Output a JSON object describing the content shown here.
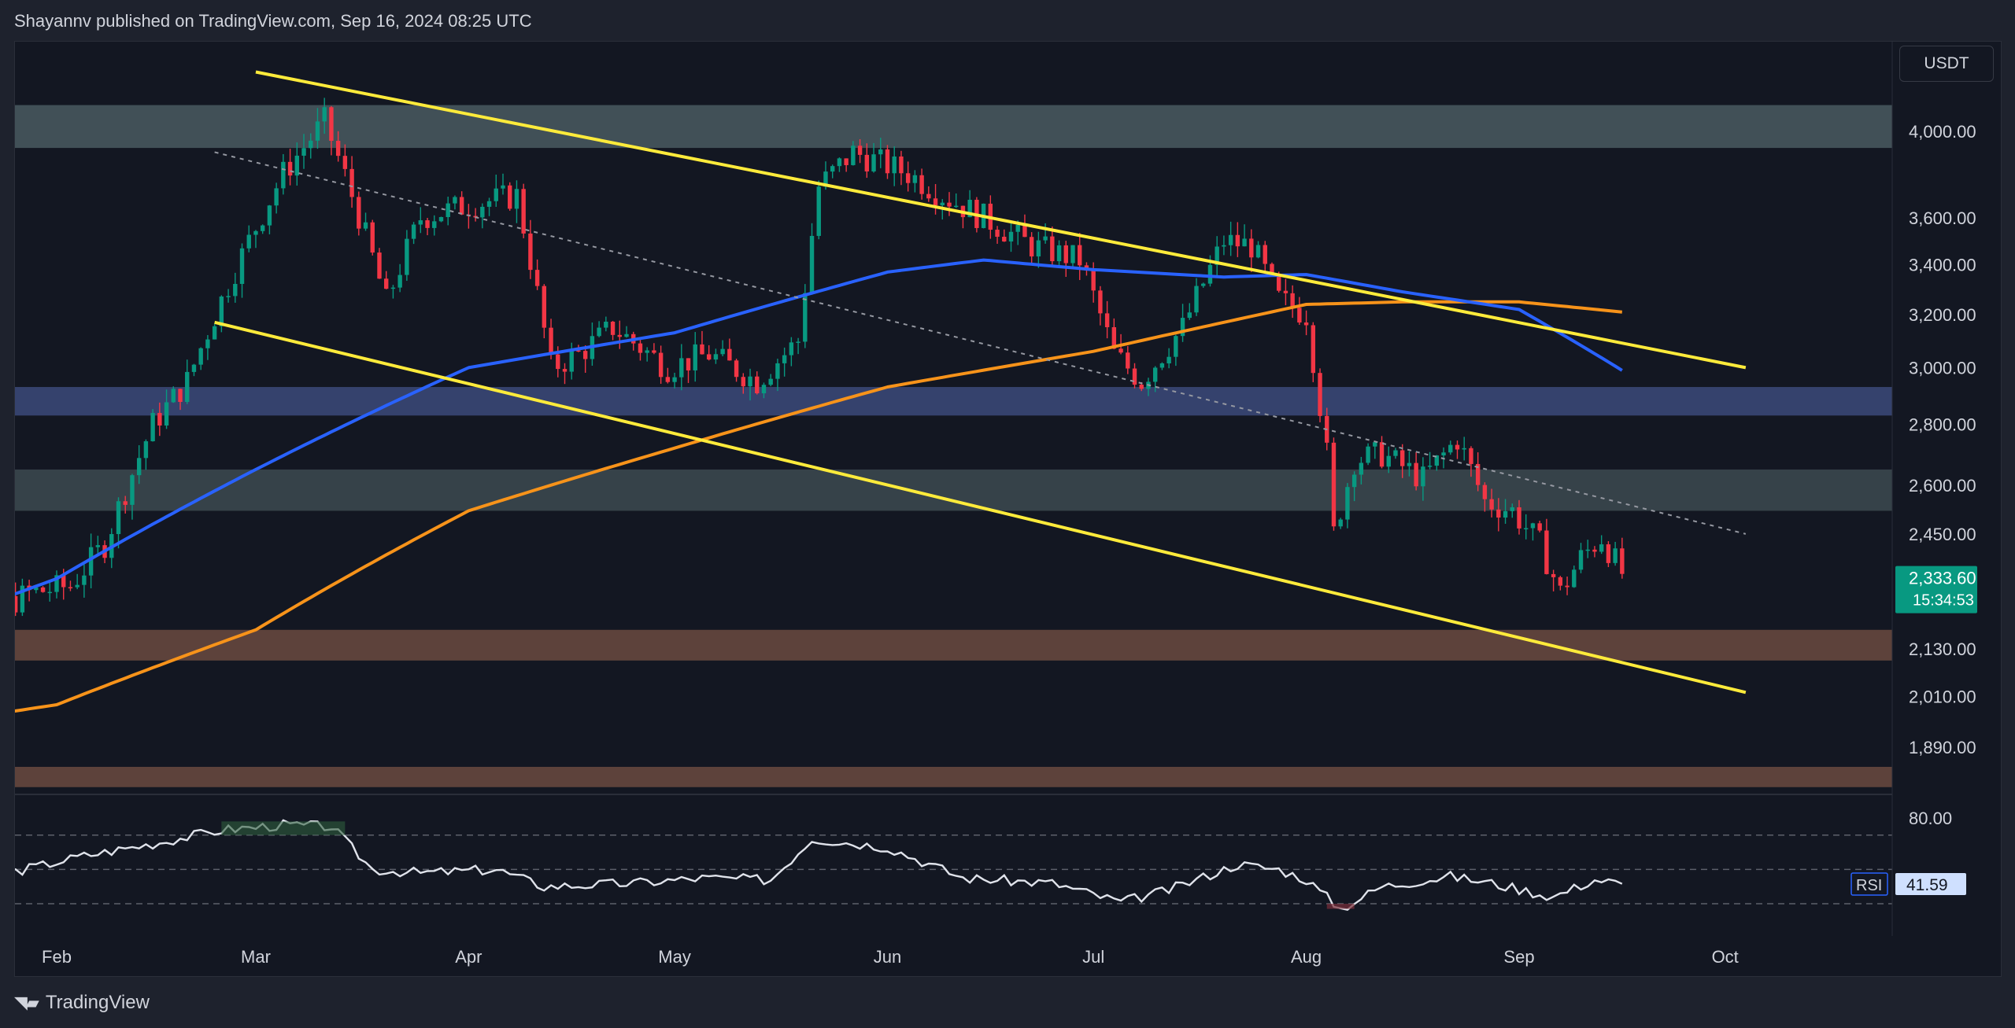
{
  "header": {
    "text": "Shayannv published on TradingView.com, Sep 16, 2024 08:25 UTC"
  },
  "currency": "USDT",
  "footer": {
    "brand": "TradingView",
    "logo": "tradingview-logo-icon"
  },
  "chart_data": [
    {
      "type": "candlestick",
      "title": "",
      "ylabel": "",
      "y_scale": "log",
      "grid": false,
      "y_ticks": [
        4000,
        3600,
        3400,
        3200,
        3000,
        2800,
        2600,
        2450,
        2130,
        2010,
        1890
      ],
      "y_tick_labels": [
        "4,000.00",
        "3,600.00",
        "3,400.00",
        "3,200.00",
        "3,000.00",
        "2,800.00",
        "2,600.00",
        "2,450.00",
        "2,130.00",
        "2,010.00",
        "1,890.00"
      ],
      "x_ticks": [
        "Feb",
        "Mar",
        "Apr",
        "May",
        "Jun",
        "Jul",
        "Aug",
        "Sep",
        "Oct"
      ],
      "x_tick_dates": [
        "2024-02-01",
        "2024-03-01",
        "2024-04-01",
        "2024-05-01",
        "2024-06-01",
        "2024-07-01",
        "2024-08-01",
        "2024-09-01",
        "2024-10-01"
      ],
      "last_price": {
        "label": "2,333.60",
        "countdown": "15:34:53",
        "color": "#089981"
      },
      "colors": {
        "up": "#089981",
        "down": "#f23645"
      },
      "close_anchors": [
        [
          "2024-01-12",
          2600
        ],
        [
          "2024-01-18",
          2470
        ],
        [
          "2024-01-23",
          2230
        ],
        [
          "2024-01-28",
          2280
        ],
        [
          "2024-02-03",
          2300
        ],
        [
          "2024-02-08",
          2420
        ],
        [
          "2024-02-15",
          2800
        ],
        [
          "2024-02-20",
          2950
        ],
        [
          "2024-02-27",
          3380
        ],
        [
          "2024-03-05",
          3800
        ],
        [
          "2024-03-11",
          4050
        ],
        [
          "2024-03-15",
          3700
        ],
        [
          "2024-03-20",
          3250
        ],
        [
          "2024-03-25",
          3600
        ],
        [
          "2024-03-31",
          3650
        ],
        [
          "2024-04-08",
          3700
        ],
        [
          "2024-04-13",
          3000
        ],
        [
          "2024-04-17",
          3050
        ],
        [
          "2024-04-22",
          3150
        ],
        [
          "2024-04-30",
          3000
        ],
        [
          "2024-05-06",
          3050
        ],
        [
          "2024-05-13",
          2950
        ],
        [
          "2024-05-19",
          3100
        ],
        [
          "2024-05-22",
          3740
        ],
        [
          "2024-05-27",
          3900
        ],
        [
          "2024-06-04",
          3800
        ],
        [
          "2024-06-09",
          3700
        ],
        [
          "2024-06-15",
          3600
        ],
        [
          "2024-06-22",
          3480
        ],
        [
          "2024-06-29",
          3420
        ],
        [
          "2024-07-04",
          3050
        ],
        [
          "2024-07-08",
          2950
        ],
        [
          "2024-07-14",
          3150
        ],
        [
          "2024-07-20",
          3500
        ],
        [
          "2024-07-24",
          3480
        ],
        [
          "2024-07-28",
          3260
        ],
        [
          "2024-08-01",
          3200
        ],
        [
          "2024-08-04",
          2700
        ],
        [
          "2024-08-05",
          2450
        ],
        [
          "2024-08-08",
          2680
        ],
        [
          "2024-08-12",
          2700
        ],
        [
          "2024-08-18",
          2620
        ],
        [
          "2024-08-23",
          2750
        ],
        [
          "2024-08-27",
          2550
        ],
        [
          "2024-08-31",
          2520
        ],
        [
          "2024-09-04",
          2420
        ],
        [
          "2024-09-07",
          2280
        ],
        [
          "2024-09-10",
          2380
        ],
        [
          "2024-09-13",
          2440
        ],
        [
          "2024-09-16",
          2333.6
        ]
      ],
      "ma_200": [
        [
          "2024-01-12",
          1940
        ],
        [
          "2024-02-01",
          1990
        ],
        [
          "2024-03-01",
          2180
        ],
        [
          "2024-04-01",
          2520
        ],
        [
          "2024-05-01",
          2720
        ],
        [
          "2024-06-01",
          2930
        ],
        [
          "2024-07-01",
          3060
        ],
        [
          "2024-07-20",
          3170
        ],
        [
          "2024-08-01",
          3240
        ],
        [
          "2024-08-15",
          3250
        ],
        [
          "2024-09-01",
          3250
        ],
        [
          "2024-09-16",
          3210
        ]
      ],
      "ma_100": [
        [
          "2024-01-12",
          2180
        ],
        [
          "2024-02-01",
          2320
        ],
        [
          "2024-03-01",
          2650
        ],
        [
          "2024-04-01",
          3000
        ],
        [
          "2024-05-01",
          3130
        ],
        [
          "2024-06-01",
          3370
        ],
        [
          "2024-06-15",
          3420
        ],
        [
          "2024-07-01",
          3380
        ],
        [
          "2024-07-20",
          3350
        ],
        [
          "2024-08-01",
          3360
        ],
        [
          "2024-08-15",
          3290
        ],
        [
          "2024-09-01",
          3220
        ],
        [
          "2024-09-16",
          2990
        ]
      ],
      "trendlines": [
        {
          "kind": "upper-channel",
          "from": [
            "2024-03-01",
            4300
          ],
          "to": [
            "2024-10-04",
            3000
          ]
        },
        {
          "kind": "lower-channel",
          "from": [
            "2024-02-24",
            3170
          ],
          "to": [
            "2024-10-04",
            2020
          ]
        },
        {
          "kind": "mid-dashed",
          "from": [
            "2024-02-24",
            3900
          ],
          "to": [
            "2024-10-04",
            2450
          ]
        }
      ],
      "zones": [
        {
          "kind": "resistance",
          "low": 3920,
          "high": 4130,
          "color": "#4a5a60"
        },
        {
          "kind": "support",
          "low": 2830,
          "high": 2930,
          "color": "#3c4a7a"
        },
        {
          "kind": "support",
          "low": 2520,
          "high": 2650,
          "color": "#3d4a50"
        },
        {
          "kind": "demand",
          "low": 2100,
          "high": 2180,
          "color": "#6b4a3f"
        },
        {
          "kind": "demand",
          "low": 1800,
          "high": 1845,
          "color": "#6b4a3f"
        }
      ]
    },
    {
      "type": "line",
      "title": "",
      "series": [
        {
          "name": "RSI",
          "last": 41.59
        }
      ],
      "last_label": "41.59",
      "y_ticks": [
        80.0
      ],
      "y_tick_labels": [
        "80.00"
      ],
      "levels": [
        70,
        50,
        30
      ],
      "rsi_anchors": [
        [
          "2024-01-12",
          47
        ],
        [
          "2024-01-25",
          48
        ],
        [
          "2024-02-05",
          58
        ],
        [
          "2024-02-15",
          65
        ],
        [
          "2024-02-25",
          73
        ],
        [
          "2024-03-05",
          76
        ],
        [
          "2024-03-12",
          75
        ],
        [
          "2024-03-18",
          50
        ],
        [
          "2024-03-25",
          48
        ],
        [
          "2024-04-05",
          50
        ],
        [
          "2024-04-12",
          40
        ],
        [
          "2024-04-25",
          42
        ],
        [
          "2024-05-05",
          45
        ],
        [
          "2024-05-15",
          44
        ],
        [
          "2024-05-21",
          68
        ],
        [
          "2024-06-01",
          63
        ],
        [
          "2024-06-12",
          45
        ],
        [
          "2024-06-25",
          42
        ],
        [
          "2024-07-05",
          31
        ],
        [
          "2024-07-12",
          38
        ],
        [
          "2024-07-22",
          53
        ],
        [
          "2024-07-28",
          50
        ],
        [
          "2024-08-01",
          44
        ],
        [
          "2024-08-06",
          27
        ],
        [
          "2024-08-12",
          40
        ],
        [
          "2024-08-22",
          46
        ],
        [
          "2024-08-28",
          42
        ],
        [
          "2024-09-06",
          34
        ],
        [
          "2024-09-12",
          44
        ],
        [
          "2024-09-16",
          41.59
        ]
      ]
    }
  ]
}
